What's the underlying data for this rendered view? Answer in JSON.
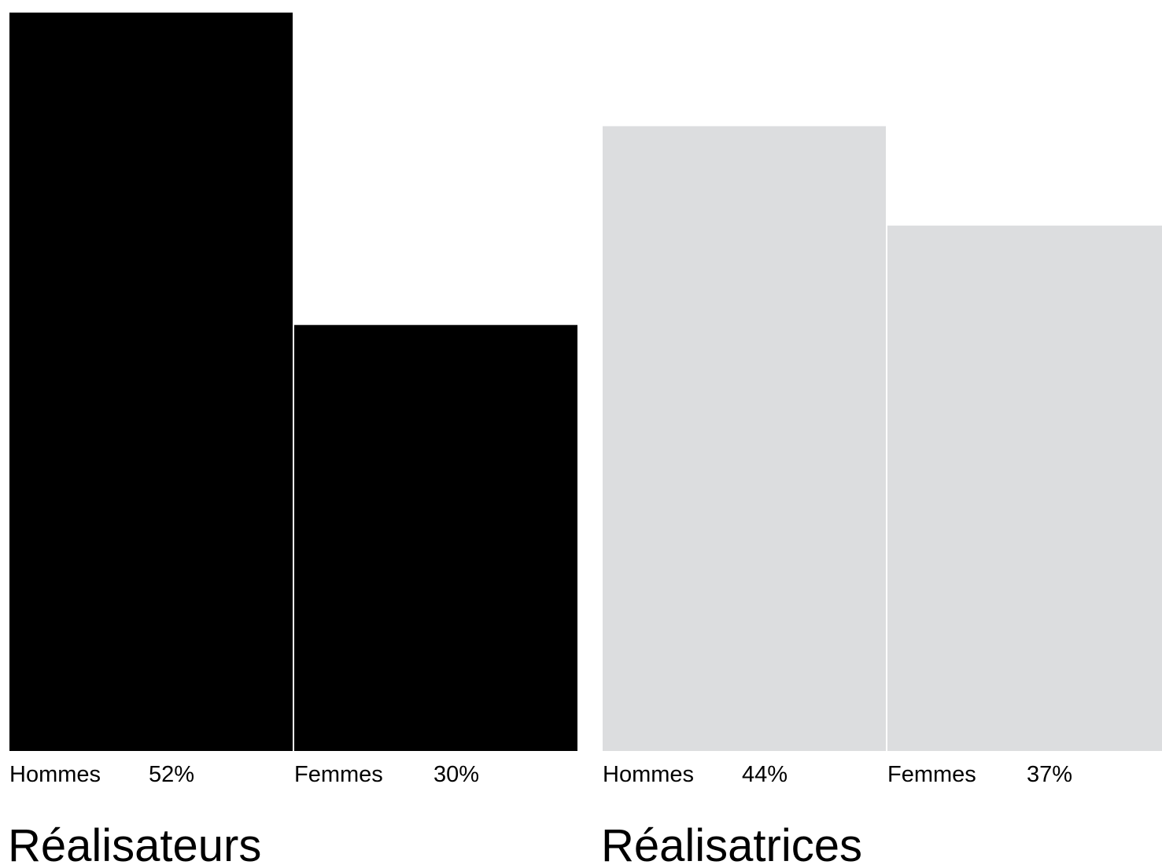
{
  "chart_data": [
    {
      "type": "bar",
      "title": "Réalisateurs",
      "categories": [
        "Hommes",
        "Femmes"
      ],
      "values": [
        52,
        30
      ],
      "value_labels": [
        "52%",
        "30%"
      ],
      "unit": "%",
      "color": "#000000",
      "ylim": [
        0,
        52
      ],
      "grid": false
    },
    {
      "type": "bar",
      "title": "Réalisatrices",
      "categories": [
        "Hommes",
        "Femmes"
      ],
      "values": [
        44,
        37
      ],
      "value_labels": [
        "44%",
        "37%"
      ],
      "unit": "%",
      "color": "#dcdddf",
      "ylim": [
        0,
        52
      ],
      "grid": false
    }
  ]
}
